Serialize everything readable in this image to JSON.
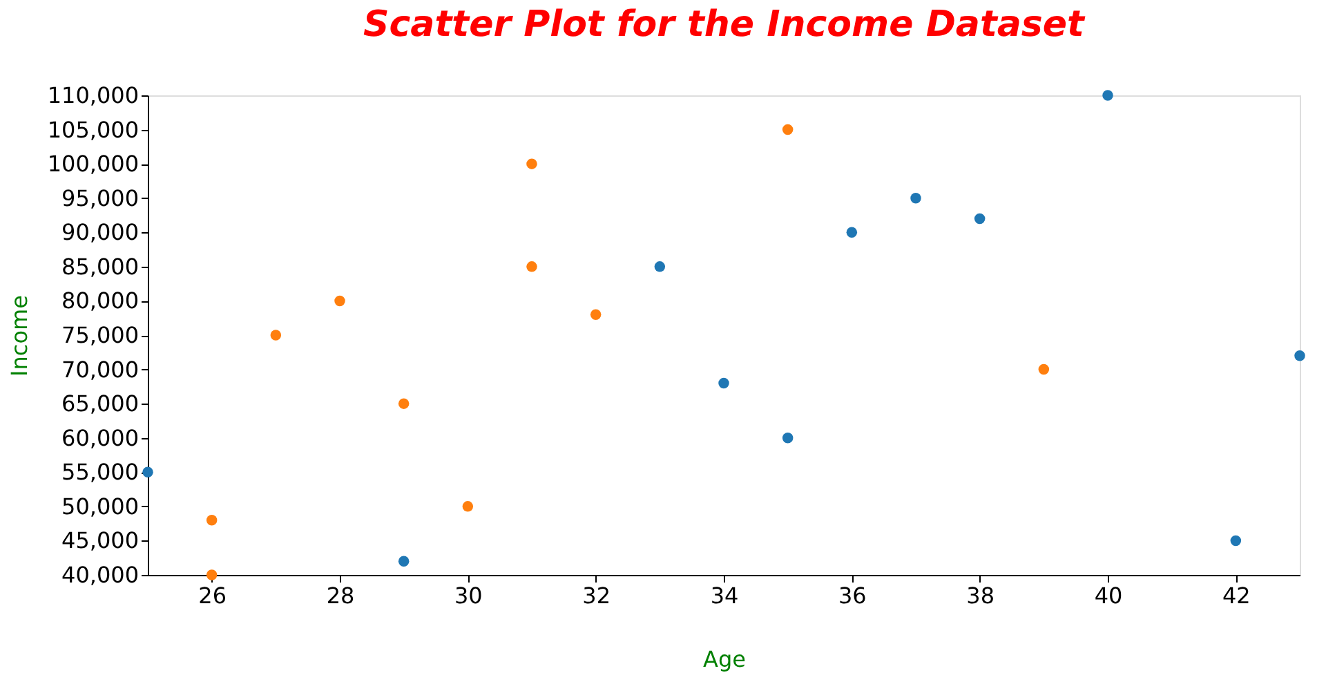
{
  "chart_data": {
    "type": "scatter",
    "title": "Scatter Plot for the Income Dataset",
    "xlabel": "Age",
    "ylabel": "Income",
    "xlim": [
      25,
      43
    ],
    "xticks": [
      26,
      28,
      30,
      32,
      34,
      36,
      38,
      40,
      42
    ],
    "ylim": [
      40000,
      110000
    ],
    "yticks": [
      {
        "value": 40000,
        "label": "40,000"
      },
      {
        "value": 45000,
        "label": "45,000"
      },
      {
        "value": 50000,
        "label": "50,000"
      },
      {
        "value": 55000,
        "label": "55,000"
      },
      {
        "value": 60000,
        "label": "60,000"
      },
      {
        "value": 65000,
        "label": "65,000"
      },
      {
        "value": 70000,
        "label": "70,000"
      },
      {
        "value": 75000,
        "label": "75,000"
      },
      {
        "value": 80000,
        "label": "80,000"
      },
      {
        "value": 85000,
        "label": "85,000"
      },
      {
        "value": 90000,
        "label": "90,000"
      },
      {
        "value": 95000,
        "label": "95,000"
      },
      {
        "value": 100000,
        "label": "100,000"
      },
      {
        "value": 105000,
        "label": "105,000"
      },
      {
        "value": 110000,
        "label": "110,000"
      }
    ],
    "grid": false,
    "legend": false,
    "marker": "circle",
    "series": [
      {
        "color": "#1f77b4",
        "x": [
          25,
          29,
          33,
          34,
          35,
          36,
          37,
          38,
          40,
          42,
          43
        ],
        "values": [
          55000,
          42000,
          85000,
          68000,
          60000,
          90000,
          95000,
          92000,
          110000,
          45000,
          72000
        ]
      },
      {
        "color": "#ff7f0e",
        "x": [
          26,
          26,
          27,
          28,
          29,
          30,
          31,
          31,
          32,
          35,
          39
        ],
        "values": [
          48000,
          40000,
          75000,
          80000,
          65000,
          50000,
          100000,
          85000,
          78000,
          105000,
          70000
        ]
      }
    ]
  }
}
